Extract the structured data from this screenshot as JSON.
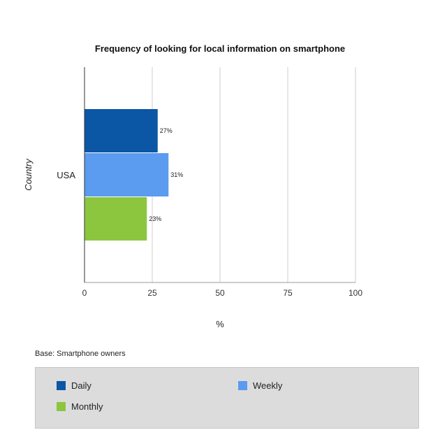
{
  "chart_data": {
    "type": "bar",
    "orientation": "horizontal",
    "title": "Frequency of looking for local information on smartphone",
    "xlabel": "%",
    "ylabel": "Country",
    "categories": [
      "USA"
    ],
    "series": [
      {
        "name": "Daily",
        "values": [
          27
        ],
        "labels": [
          "27%"
        ],
        "color": "#0b56a5"
      },
      {
        "name": "Weekly",
        "values": [
          31
        ],
        "labels": [
          "31%"
        ],
        "color": "#5b9bf0"
      },
      {
        "name": "Monthly",
        "values": [
          23
        ],
        "labels": [
          "23%"
        ],
        "color": "#8cc63f"
      }
    ],
    "xlim": [
      0,
      100
    ],
    "xticks": [
      "0",
      "25",
      "50",
      "75",
      "100"
    ],
    "grid": true,
    "legend_position": "bottom"
  },
  "note": "Base: Smartphone owners"
}
